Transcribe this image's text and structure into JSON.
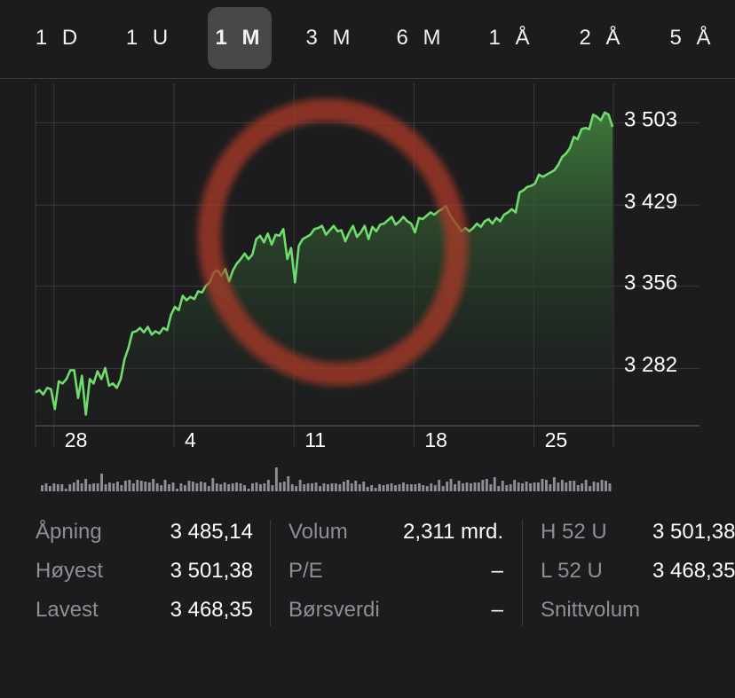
{
  "tabs": [
    {
      "label": "1 D",
      "active": false
    },
    {
      "label": "1 U",
      "active": false
    },
    {
      "label": "1 M",
      "active": true
    },
    {
      "label": "3 M",
      "active": false
    },
    {
      "label": "6 M",
      "active": false
    },
    {
      "label": "1 Å",
      "active": false
    },
    {
      "label": "2 Å",
      "active": false
    },
    {
      "label": "5 Å",
      "active": false
    }
  ],
  "chart_data": {
    "type": "area",
    "y_ticks": [
      "3 503",
      "3 429",
      "3 356",
      "3 282"
    ],
    "y_tick_values": [
      3503,
      3429,
      3356,
      3282
    ],
    "ylim": [
      3230,
      3535
    ],
    "x_ticks": [
      "28",
      "4",
      "11",
      "18",
      "25"
    ],
    "x_tick_positions": [
      0.8,
      6,
      11.2,
      16.4,
      21.6
    ],
    "grid": true,
    "line_color": "#6fdc6b",
    "values": [
      3260,
      3262,
      3258,
      3264,
      3263,
      3245,
      3270,
      3268,
      3272,
      3280,
      3280,
      3255,
      3275,
      3240,
      3272,
      3268,
      3279,
      3272,
      3282,
      3266,
      3268,
      3264,
      3272,
      3290,
      3300,
      3314,
      3315,
      3318,
      3314,
      3319,
      3312,
      3315,
      3313,
      3318,
      3316,
      3330,
      3337,
      3334,
      3347,
      3343,
      3346,
      3344,
      3351,
      3350,
      3356,
      3359,
      3368,
      3370,
      3365,
      3371,
      3360,
      3370,
      3376,
      3380,
      3385,
      3380,
      3384,
      3398,
      3401,
      3395,
      3403,
      3393,
      3402,
      3401,
      3407,
      3380,
      3390,
      3359,
      3392,
      3398,
      3400,
      3402,
      3407,
      3408,
      3410,
      3402,
      3406,
      3410,
      3405,
      3406,
      3396,
      3404,
      3410,
      3400,
      3404,
      3410,
      3398,
      3409,
      3405,
      3411,
      3412,
      3415,
      3418,
      3411,
      3414,
      3418,
      3414,
      3412,
      3404,
      3417,
      3416,
      3419,
      3422,
      3420,
      3423,
      3425,
      3428,
      3420,
      3415,
      3410,
      3405,
      3408,
      3405,
      3408,
      3412,
      3409,
      3414,
      3416,
      3412,
      3417,
      3414,
      3420,
      3422,
      3425,
      3422,
      3440,
      3442,
      3445,
      3446,
      3448,
      3456,
      3454,
      3456,
      3458,
      3460,
      3465,
      3472,
      3475,
      3480,
      3490,
      3488,
      3497,
      3498,
      3497,
      3510,
      3508,
      3505,
      3512,
      3510,
      3499
    ]
  },
  "volume_bars": [
    7,
    9,
    6,
    9,
    8,
    8,
    3,
    8,
    10,
    13,
    9,
    14,
    8,
    9,
    9,
    20,
    8,
    10,
    9,
    11,
    7,
    12,
    13,
    9,
    13,
    12,
    11,
    10,
    14,
    9,
    7,
    13,
    8,
    10,
    3,
    9,
    7,
    12,
    11,
    9,
    11,
    10,
    6,
    15,
    9,
    8,
    10,
    8,
    9,
    10,
    9,
    7,
    3,
    9,
    10,
    8,
    9,
    13,
    7,
    27,
    10,
    11,
    17,
    8,
    6,
    13,
    8,
    9,
    9,
    10,
    6,
    9,
    8,
    9,
    9,
    8,
    11,
    13,
    9,
    12,
    8,
    11,
    5,
    7,
    4,
    8,
    7,
    8,
    9,
    7,
    8,
    10,
    8,
    8,
    8,
    9,
    7,
    6,
    9,
    7,
    13,
    6,
    11,
    14,
    8,
    12,
    9,
    10,
    9,
    10,
    10,
    13,
    14,
    8,
    16,
    6,
    12,
    7,
    8,
    13,
    10,
    9,
    11,
    9,
    10,
    10,
    14,
    13,
    8,
    16,
    10,
    13,
    10,
    12,
    12,
    7,
    9,
    13,
    6,
    11,
    10,
    13,
    12,
    9
  ],
  "stats": {
    "col1": [
      {
        "label": "Åpning",
        "value": "3 485,14"
      },
      {
        "label": "Høyest",
        "value": "3 501,38"
      },
      {
        "label": "Lavest",
        "value": "3 468,35"
      }
    ],
    "col2": [
      {
        "label": "Volum",
        "value": "2,311 mrd."
      },
      {
        "label": "P/E",
        "value": "–"
      },
      {
        "label": "Børsverdi",
        "value": "–"
      }
    ],
    "col3": [
      {
        "label": "H 52 U",
        "value": "3 501,38"
      },
      {
        "label": "L 52 U",
        "value": "3 468,35"
      },
      {
        "label": "Snittvolum",
        "value": ""
      }
    ]
  }
}
